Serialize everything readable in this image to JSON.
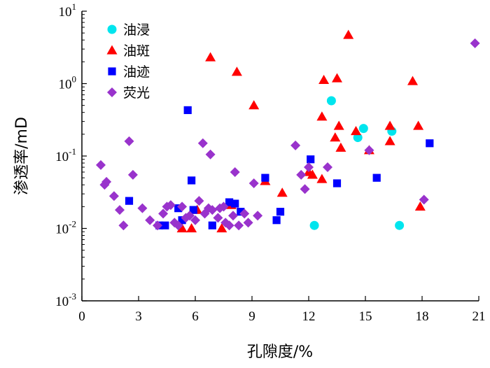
{
  "chart_data": {
    "type": "scatter",
    "title": "",
    "xlabel": "孔隙度/%",
    "ylabel": "渗透率/mD",
    "xlim": [
      0,
      21
    ],
    "ylim": [
      0.001,
      10
    ],
    "yscale": "log",
    "xticks": [
      "0",
      "3",
      "6",
      "9",
      "12",
      "15",
      "18",
      "21"
    ],
    "yticks": [
      {
        "base": "10",
        "exp": "-3"
      },
      {
        "base": "10",
        "exp": "-2"
      },
      {
        "base": "10",
        "exp": "-1"
      },
      {
        "base": "10",
        "exp": "0"
      },
      {
        "base": "10",
        "exp": "1"
      }
    ],
    "legend_position": "top-left",
    "series": [
      {
        "name": "油浸",
        "marker": "circle",
        "color": "#00e5ee",
        "points": [
          [
            12.3,
            0.011
          ],
          [
            13.2,
            0.58
          ],
          [
            14.6,
            0.18
          ],
          [
            14.9,
            0.24
          ],
          [
            16.4,
            0.22
          ],
          [
            16.8,
            0.011
          ]
        ]
      },
      {
        "name": "油斑",
        "marker": "triangle",
        "color": "#ff0000",
        "points": [
          [
            5.3,
            0.01
          ],
          [
            5.8,
            0.01
          ],
          [
            6.1,
            0.018
          ],
          [
            6.8,
            2.3
          ],
          [
            7.4,
            0.01
          ],
          [
            7.9,
            0.021
          ],
          [
            8.2,
            1.45
          ],
          [
            9.1,
            0.5
          ],
          [
            9.7,
            0.045
          ],
          [
            10.6,
            0.031
          ],
          [
            12.0,
            0.06
          ],
          [
            12.2,
            0.055
          ],
          [
            12.7,
            0.048
          ],
          [
            12.7,
            0.35
          ],
          [
            12.8,
            1.12
          ],
          [
            13.4,
            0.18
          ],
          [
            13.5,
            1.18
          ],
          [
            13.6,
            0.26
          ],
          [
            13.7,
            0.13
          ],
          [
            14.1,
            4.7
          ],
          [
            14.5,
            0.22
          ],
          [
            15.2,
            0.12
          ],
          [
            16.3,
            0.16
          ],
          [
            16.3,
            0.26
          ],
          [
            17.5,
            1.08
          ],
          [
            17.8,
            0.26
          ],
          [
            17.9,
            0.02
          ]
        ]
      },
      {
        "name": "油迹",
        "marker": "square",
        "color": "#0000ff",
        "points": [
          [
            2.5,
            0.024
          ],
          [
            4.1,
            0.011
          ],
          [
            4.4,
            0.011
          ],
          [
            5.1,
            0.019
          ],
          [
            5.3,
            0.013
          ],
          [
            5.6,
            0.43
          ],
          [
            5.8,
            0.046
          ],
          [
            5.9,
            0.018
          ],
          [
            6.9,
            0.011
          ],
          [
            7.8,
            0.023
          ],
          [
            8.1,
            0.022
          ],
          [
            8.4,
            0.017
          ],
          [
            9.7,
            0.05
          ],
          [
            10.3,
            0.013
          ],
          [
            10.5,
            0.017
          ],
          [
            12.1,
            0.09
          ],
          [
            13.5,
            0.042
          ],
          [
            15.6,
            0.05
          ],
          [
            18.4,
            0.15
          ]
        ]
      },
      {
        "name": "荧光",
        "marker": "diamond",
        "color": "#9933cc",
        "points": [
          [
            1.0,
            0.075
          ],
          [
            1.2,
            0.04
          ],
          [
            1.3,
            0.044
          ],
          [
            1.7,
            0.028
          ],
          [
            2.0,
            0.018
          ],
          [
            2.2,
            0.011
          ],
          [
            2.5,
            0.16
          ],
          [
            2.7,
            0.055
          ],
          [
            3.2,
            0.019
          ],
          [
            3.6,
            0.013
          ],
          [
            4.0,
            0.011
          ],
          [
            4.3,
            0.016
          ],
          [
            4.5,
            0.02
          ],
          [
            4.7,
            0.021
          ],
          [
            4.9,
            0.012
          ],
          [
            5.1,
            0.011
          ],
          [
            5.3,
            0.02
          ],
          [
            5.5,
            0.014
          ],
          [
            5.7,
            0.015
          ],
          [
            6.0,
            0.013
          ],
          [
            6.2,
            0.024
          ],
          [
            6.4,
            0.15
          ],
          [
            6.5,
            0.016
          ],
          [
            6.7,
            0.019
          ],
          [
            6.8,
            0.105
          ],
          [
            6.9,
            0.018
          ],
          [
            7.2,
            0.014
          ],
          [
            7.3,
            0.019
          ],
          [
            7.5,
            0.02
          ],
          [
            7.6,
            0.012
          ],
          [
            7.8,
            0.011
          ],
          [
            8.0,
            0.015
          ],
          [
            8.1,
            0.06
          ],
          [
            8.3,
            0.011
          ],
          [
            8.6,
            0.016
          ],
          [
            8.8,
            0.012
          ],
          [
            9.1,
            0.042
          ],
          [
            9.3,
            0.015
          ],
          [
            11.3,
            0.14
          ],
          [
            11.6,
            0.055
          ],
          [
            11.8,
            0.035
          ],
          [
            12.0,
            0.07
          ],
          [
            13.0,
            0.07
          ],
          [
            15.2,
            0.12
          ],
          [
            18.1,
            0.025
          ],
          [
            20.8,
            3.6
          ]
        ]
      }
    ]
  }
}
